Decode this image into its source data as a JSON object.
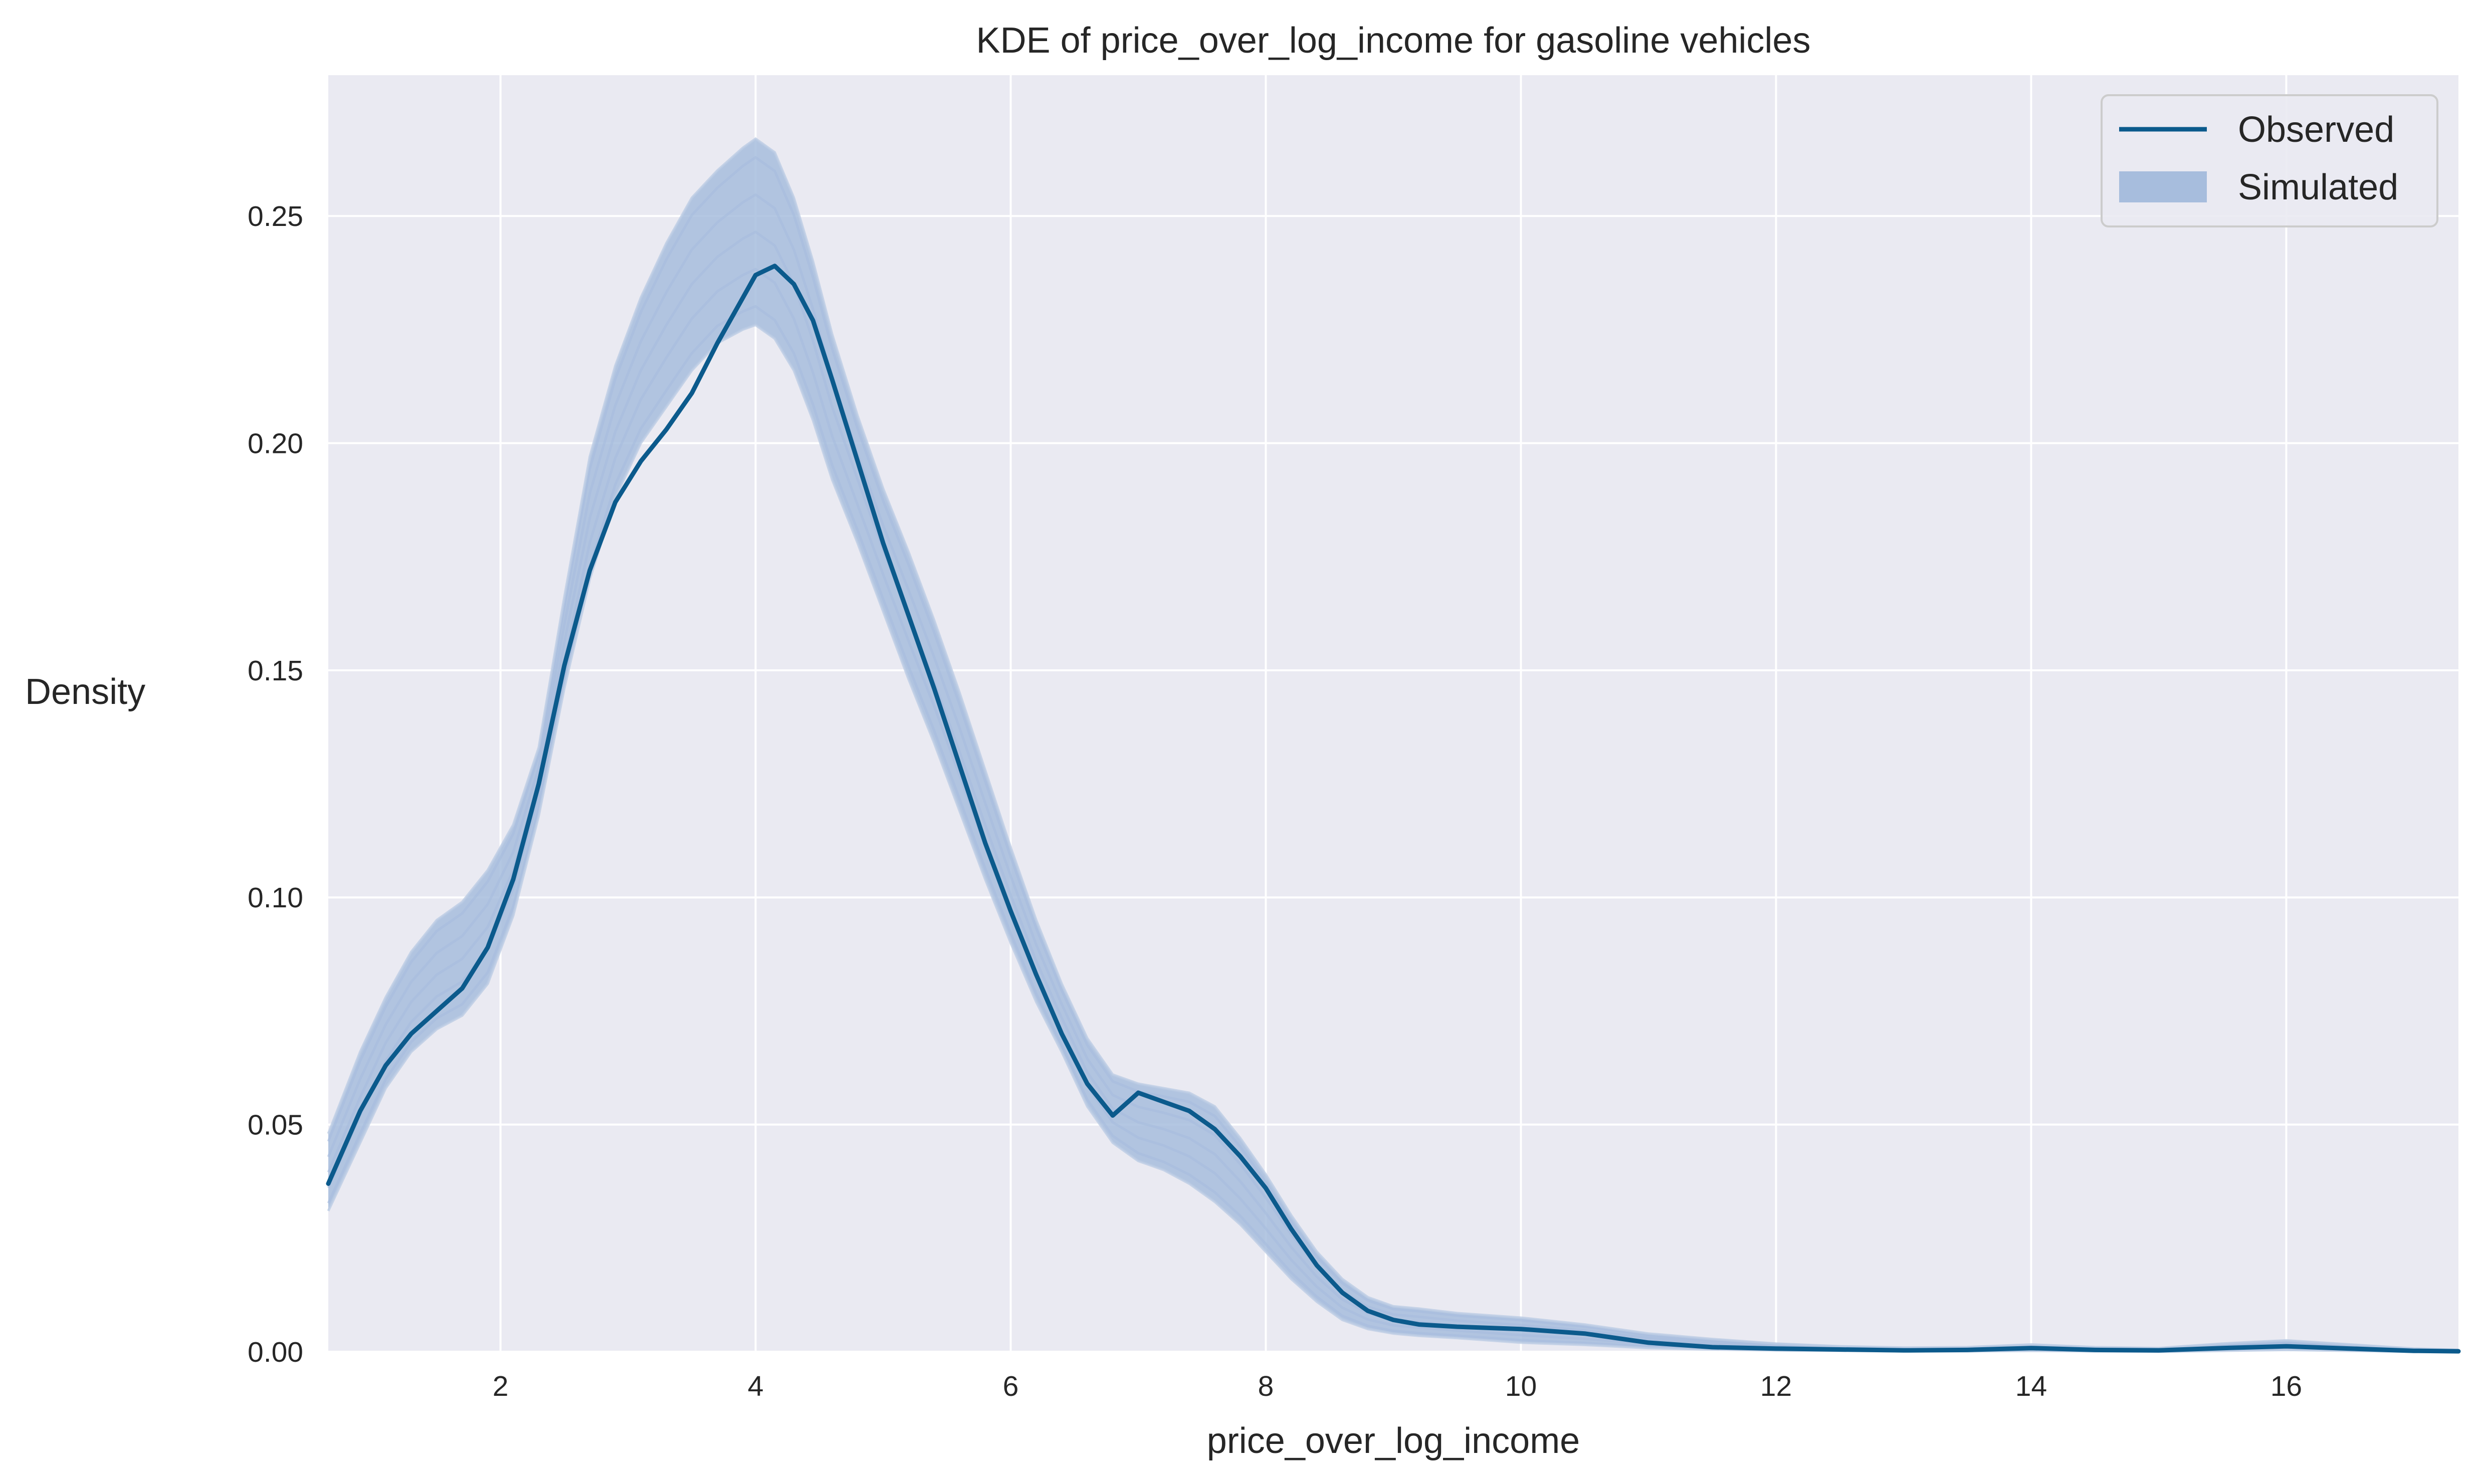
{
  "chart_data": {
    "type": "line",
    "title": "KDE of price_over_log_income for gasoline vehicles",
    "xlabel": "price_over_log_income",
    "ylabel": "Density",
    "xlim": [
      0.65,
      17.35
    ],
    "ylim": [
      0,
      0.281
    ],
    "x_ticks": [
      2,
      4,
      6,
      8,
      10,
      12,
      14,
      16
    ],
    "y_ticks": [
      0.0,
      0.05,
      0.1,
      0.15,
      0.2,
      0.25
    ],
    "y_tick_labels": [
      "0.00",
      "0.05",
      "0.10",
      "0.15",
      "0.20",
      "0.25"
    ],
    "grid": true,
    "legend_position": "top-right",
    "colors": {
      "background": "#eaeaf2",
      "grid": "#ffffff",
      "observed": "#0b5a8c",
      "simulated": "#a7bddd"
    },
    "legend": {
      "observed_label": "Observed",
      "simulated_label": "Simulated"
    },
    "series": [
      {
        "name": "Observed",
        "x": [
          0.65,
          0.9,
          1.1,
          1.3,
          1.5,
          1.7,
          1.9,
          2.1,
          2.3,
          2.5,
          2.7,
          2.9,
          3.1,
          3.3,
          3.5,
          3.7,
          3.9,
          4.0,
          4.15,
          4.3,
          4.45,
          4.6,
          4.8,
          5.0,
          5.2,
          5.4,
          5.6,
          5.8,
          6.0,
          6.2,
          6.4,
          6.6,
          6.8,
          7.0,
          7.2,
          7.4,
          7.6,
          7.8,
          8.0,
          8.2,
          8.4,
          8.6,
          8.8,
          9.0,
          9.2,
          9.5,
          10.0,
          10.5,
          11.0,
          11.5,
          12.0,
          12.5,
          13.0,
          13.5,
          14.0,
          14.5,
          15.0,
          15.5,
          16.0,
          16.5,
          17.0,
          17.35
        ],
        "y": [
          0.037,
          0.053,
          0.063,
          0.07,
          0.075,
          0.08,
          0.089,
          0.104,
          0.125,
          0.151,
          0.172,
          0.187,
          0.196,
          0.203,
          0.211,
          0.222,
          0.232,
          0.237,
          0.239,
          0.235,
          0.227,
          0.214,
          0.196,
          0.178,
          0.162,
          0.146,
          0.129,
          0.112,
          0.097,
          0.083,
          0.07,
          0.059,
          0.052,
          0.057,
          0.055,
          0.053,
          0.049,
          0.043,
          0.036,
          0.027,
          0.019,
          0.013,
          0.009,
          0.007,
          0.006,
          0.0055,
          0.005,
          0.004,
          0.002,
          0.001,
          0.0007,
          0.0005,
          0.0003,
          0.0004,
          0.0008,
          0.0004,
          0.0003,
          0.0008,
          0.0012,
          0.0007,
          0.0002,
          0.0001
        ]
      },
      {
        "name": "Simulated",
        "x": [
          0.65,
          0.9,
          1.1,
          1.3,
          1.5,
          1.7,
          1.9,
          2.1,
          2.3,
          2.5,
          2.7,
          2.9,
          3.1,
          3.3,
          3.5,
          3.7,
          3.9,
          4.0,
          4.15,
          4.3,
          4.45,
          4.6,
          4.8,
          5.0,
          5.2,
          5.4,
          5.6,
          5.8,
          6.0,
          6.2,
          6.4,
          6.6,
          6.8,
          7.0,
          7.2,
          7.4,
          7.6,
          7.8,
          8.0,
          8.2,
          8.4,
          8.6,
          8.8,
          9.0,
          9.2,
          9.5,
          10.0,
          10.5,
          11.0,
          11.5,
          12.0,
          12.5,
          13.0,
          13.5,
          14.0,
          14.5,
          15.0,
          15.5,
          16.0,
          16.5,
          17.0,
          17.35
        ],
        "y_lower": [
          0.031,
          0.046,
          0.058,
          0.066,
          0.071,
          0.074,
          0.081,
          0.096,
          0.118,
          0.146,
          0.17,
          0.188,
          0.2,
          0.208,
          0.216,
          0.222,
          0.225,
          0.226,
          0.223,
          0.216,
          0.205,
          0.192,
          0.178,
          0.163,
          0.148,
          0.134,
          0.119,
          0.104,
          0.09,
          0.077,
          0.066,
          0.054,
          0.046,
          0.042,
          0.04,
          0.037,
          0.033,
          0.028,
          0.022,
          0.016,
          0.011,
          0.007,
          0.005,
          0.004,
          0.0035,
          0.003,
          0.002,
          0.0015,
          0.0008,
          0.0005,
          0.0003,
          0.0002,
          0.0001,
          0.0001,
          0.0002,
          0.0001,
          0.0,
          0.0002,
          0.0004,
          0.0002,
          0.0,
          0.0
        ],
        "y_upper": [
          0.048,
          0.066,
          0.078,
          0.088,
          0.095,
          0.099,
          0.106,
          0.116,
          0.133,
          0.166,
          0.197,
          0.217,
          0.232,
          0.244,
          0.254,
          0.26,
          0.265,
          0.267,
          0.264,
          0.254,
          0.24,
          0.224,
          0.206,
          0.19,
          0.176,
          0.161,
          0.145,
          0.128,
          0.111,
          0.095,
          0.081,
          0.069,
          0.061,
          0.059,
          0.058,
          0.057,
          0.054,
          0.047,
          0.039,
          0.03,
          0.022,
          0.016,
          0.012,
          0.01,
          0.0095,
          0.0085,
          0.0075,
          0.006,
          0.004,
          0.0028,
          0.0018,
          0.0012,
          0.0009,
          0.001,
          0.0016,
          0.001,
          0.0008,
          0.0018,
          0.0025,
          0.0016,
          0.0007,
          0.0004
        ]
      }
    ]
  }
}
